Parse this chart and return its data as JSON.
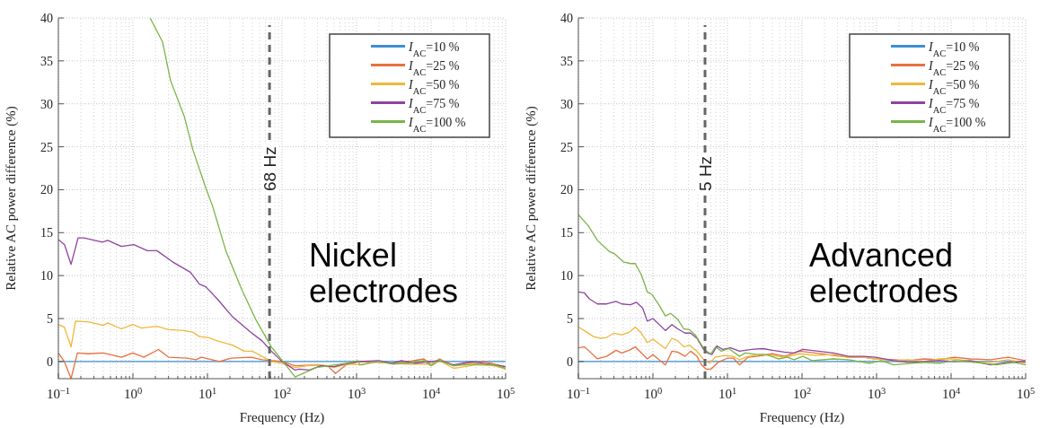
{
  "chart_data": [
    {
      "type": "line",
      "xlabel": "Frequency (Hz)",
      "ylabel": "Relative AC power difference (%)",
      "log": "x",
      "xlim": [
        0.1,
        100000
      ],
      "xticks": [
        {
          "value": 0.1,
          "label": "10$^{−1}$"
        },
        {
          "value": 1,
          "label": "10$^{0}$"
        },
        {
          "value": 10,
          "label": "10$^{1}$"
        },
        {
          "value": 100,
          "label": "10$^{2}$"
        },
        {
          "value": 1000,
          "label": "10$^{3}$"
        },
        {
          "value": 10000,
          "label": "10$^{4}$"
        },
        {
          "value": 100000,
          "label": "10$^{5}$"
        }
      ],
      "ylim": [
        -2,
        40
      ],
      "yticks": [
        0,
        5,
        10,
        15,
        20,
        25,
        30,
        35,
        40
      ],
      "grid": true,
      "legend": "top right",
      "ref_lines": [
        {
          "axis": "x",
          "value": 68,
          "label": "68 Hz",
          "color": "#666666",
          "line_style": "dashed"
        }
      ],
      "annotations": [
        "Nickel electrodes"
      ],
      "series": [
        {
          "name": "I$_{AC}$=10 %",
          "color": "#3e8fd0",
          "x": [
            0.1,
            100000
          ],
          "values": [
            0,
            0
          ]
        },
        {
          "name": "I$_{AC}$=25 %",
          "color": "#e8703f",
          "x": [
            0.1,
            0.12,
            0.148,
            0.18,
            0.25,
            0.4,
            0.7,
            1.0,
            1.4,
            2.2,
            3.0,
            5.3,
            7,
            8.3,
            14.5,
            21,
            38,
            54,
            100,
            150,
            290,
            410,
            520,
            720,
            1100,
            2000,
            3000,
            5000,
            8000,
            10000,
            13000,
            20000,
            30000,
            50000,
            100000
          ],
          "values": [
            1.0,
            0,
            -2.0,
            1.0,
            0.9,
            1.0,
            0.5,
            1.0,
            0.5,
            1.4,
            0.5,
            0.4,
            0.2,
            0.5,
            0,
            0.4,
            0.5,
            0.2,
            0,
            -0.5,
            -0.4,
            -0.5,
            -1.4,
            -0.4,
            0,
            -0.1,
            -0.2,
            0,
            0.3,
            -0.3,
            0.3,
            -0.5,
            -0.2,
            0,
            -0.6
          ]
        },
        {
          "name": "I$_{AC}$=50 %",
          "color": "#f0b83a",
          "x": [
            0.1,
            0.12,
            0.148,
            0.17,
            0.26,
            0.4,
            0.46,
            0.7,
            1.0,
            1.3,
            2.1,
            3.0,
            4.9,
            6.4,
            7.8,
            10.2,
            13.5,
            21.7,
            31,
            40,
            54,
            72,
            100,
            150,
            220,
            330,
            500,
            750,
            1200,
            1700,
            3000,
            5000,
            10000,
            13000,
            20000,
            40000,
            70000,
            100000
          ],
          "values": [
            4.3,
            4.0,
            1.7,
            4.7,
            4.6,
            4.2,
            4.5,
            3.8,
            4.3,
            3.9,
            4.1,
            3.7,
            3.6,
            3.4,
            2.9,
            2.8,
            2.4,
            1.9,
            1.2,
            1.2,
            0.6,
            0,
            -0.2,
            -0.7,
            -0.5,
            -0.4,
            -0.7,
            -0.3,
            -0.4,
            0,
            -0.2,
            -0.3,
            -0.3,
            0.1,
            -0.8,
            -0.4,
            -0.5,
            -0.9
          ]
        },
        {
          "name": "I$_{AC}$=75 %",
          "color": "#8e44a0",
          "x": [
            0.1,
            0.121,
            0.148,
            0.184,
            0.22,
            0.39,
            0.46,
            0.7,
            1.03,
            1.56,
            2.1,
            3.4,
            5.9,
            7.8,
            9.5,
            13.5,
            21.7,
            38,
            54,
            72,
            100,
            150,
            170,
            234,
            330,
            500,
            700,
            1100,
            2000,
            3000,
            4000,
            6000,
            10000,
            13000,
            20000,
            35000,
            50000,
            100000
          ],
          "values": [
            14.2,
            13.6,
            11.3,
            14.4,
            14.4,
            13.9,
            14.1,
            13.4,
            13.6,
            12.9,
            12.9,
            11.6,
            10.4,
            9.0,
            8.7,
            7.3,
            5.2,
            3.4,
            2.4,
            1.2,
            0,
            -1.0,
            -0.9,
            -1.0,
            -0.5,
            -0.6,
            -0.3,
            0,
            0.1,
            -0.2,
            0.1,
            -0.2,
            0,
            0.1,
            -0.4,
            0,
            -0.2,
            -0.6
          ]
        },
        {
          "name": "I$_{AC}$=100 %",
          "color": "#79b546",
          "x": [
            1.7,
            2.5,
            3.2,
            4.9,
            6.4,
            9.5,
            11.7,
            17.8,
            28.8,
            45,
            72,
            103,
            150,
            288,
            725,
            1050,
            1100,
            2000,
            3000,
            5000,
            8000,
            10000,
            13000,
            20000,
            40000,
            70000,
            100000
          ],
          "values": [
            40,
            37.2,
            32.7,
            28.5,
            24.6,
            20.2,
            18.1,
            12.8,
            8.4,
            4.8,
            1.7,
            0,
            -1.8,
            -0.7,
            -0.2,
            0.1,
            -0.4,
            0,
            -0.3,
            -0.2,
            0.1,
            -0.5,
            0.1,
            -0.5,
            -0.3,
            -0.4,
            -0.8
          ]
        }
      ]
    },
    {
      "type": "line",
      "xlabel": "Frequency (Hz)",
      "ylabel": "Relative AC power difference (%)",
      "log": "x",
      "xlim": [
        0.1,
        100000
      ],
      "xticks": [
        {
          "value": 0.1,
          "label": "10$^{−1}$"
        },
        {
          "value": 1,
          "label": "10$^{0}$"
        },
        {
          "value": 10,
          "label": "10$^{1}$"
        },
        {
          "value": 100,
          "label": "10$^{2}$"
        },
        {
          "value": 1000,
          "label": "10$^{3}$"
        },
        {
          "value": 10000,
          "label": "10$^{4}$"
        },
        {
          "value": 100000,
          "label": "10$^{5}$"
        }
      ],
      "ylim": [
        -2,
        40
      ],
      "yticks": [
        0,
        5,
        10,
        15,
        20,
        25,
        30,
        35,
        40
      ],
      "grid": true,
      "legend": "top right",
      "ref_lines": [
        {
          "axis": "x",
          "value": 5,
          "label": "5 Hz",
          "color": "#666666",
          "line_style": "dashed"
        }
      ],
      "annotations": [
        "Advanced electrodes"
      ],
      "series": [
        {
          "name": "I$_{AC}$=10 %",
          "color": "#3e8fd0",
          "x": [
            0.1,
            100000
          ],
          "values": [
            0,
            0
          ]
        },
        {
          "name": "I$_{AC}$=25 %",
          "color": "#e8703f",
          "x": [
            0.1,
            0.12,
            0.14,
            0.18,
            0.24,
            0.32,
            0.38,
            0.48,
            0.58,
            0.7,
            0.84,
            1.0,
            1.47,
            1.8,
            2.15,
            2.7,
            3.2,
            3.9,
            4.5,
            5.2,
            6.0,
            7.5,
            10,
            12,
            14.5,
            19,
            25,
            40,
            58,
            93,
            150,
            262,
            420,
            670,
            960,
            1700,
            2700,
            4300,
            6900,
            11000,
            18000,
            34000,
            58000,
            100000
          ],
          "values": [
            1.6,
            1.7,
            1.2,
            0.3,
            0.6,
            1.3,
            1.0,
            1.3,
            1.7,
            1.0,
            0.3,
            0.8,
            -0.4,
            1.2,
            1.1,
            0.6,
            1.2,
            0.6,
            -0.4,
            -0.9,
            -0.9,
            -0.1,
            0.4,
            0.4,
            -0.4,
            0.5,
            0.6,
            0.9,
            0.6,
            1.2,
            1.0,
            0.7,
            0.5,
            0.5,
            0.3,
            0.2,
            0.1,
            0.3,
            0.2,
            0.5,
            0.3,
            0.2,
            0.5,
            0.1
          ]
        },
        {
          "name": "I$_{AC}$=50 %",
          "color": "#f0b83a",
          "x": [
            0.1,
            0.12,
            0.16,
            0.2,
            0.24,
            0.3,
            0.38,
            0.48,
            0.58,
            0.7,
            0.84,
            1.0,
            1.47,
            1.8,
            2.15,
            2.6,
            3.1,
            3.9,
            4.7,
            5.7,
            6.9,
            9.1,
            12,
            14.5,
            19,
            28,
            40,
            58,
            93,
            150,
            262,
            420,
            670,
            960,
            1700,
            2700,
            4300,
            6900,
            11000,
            18000,
            34000,
            58000,
            100000
          ],
          "values": [
            4.0,
            3.6,
            2.9,
            2.7,
            2.8,
            3.3,
            3.1,
            3.4,
            4.0,
            3.3,
            2.2,
            2.6,
            1.5,
            2.7,
            2.4,
            1.7,
            1.9,
            1.2,
            0.3,
            -0.2,
            0.5,
            0.7,
            0.6,
            0.2,
            0.6,
            0.8,
            0.7,
            0.5,
            0.9,
            0.7,
            0.8,
            0.5,
            0.5,
            0.3,
            0.1,
            0.2,
            0,
            0.3,
            0.3,
            0,
            -0.1,
            0.2,
            -0.2
          ]
        },
        {
          "name": "I$_{AC}$=75 %",
          "color": "#8e44a0",
          "x": [
            0.1,
            0.12,
            0.14,
            0.18,
            0.24,
            0.32,
            0.38,
            0.5,
            0.6,
            0.73,
            0.84,
            1.0,
            1.47,
            1.8,
            2.15,
            2.7,
            3.2,
            3.9,
            4.7,
            5.4,
            6.2,
            7.2,
            8.7,
            11,
            14.5,
            21,
            30,
            40,
            58,
            78,
            103,
            165,
            262,
            420,
            670,
            960,
            1700,
            2700,
            4300,
            6900,
            11000,
            18000,
            34000,
            58000,
            100000
          ],
          "values": [
            8.1,
            8.0,
            7.3,
            6.7,
            6.7,
            7.0,
            6.7,
            6.6,
            6.9,
            6.2,
            4.7,
            5.0,
            3.6,
            4.3,
            3.8,
            3.3,
            3.3,
            2.7,
            1.5,
            1.0,
            0.8,
            1.8,
            1.4,
            1.6,
            1.2,
            1.4,
            1.5,
            1.3,
            1.1,
            1.0,
            1.4,
            1.2,
            1.0,
            0.6,
            0.6,
            0.5,
            0.1,
            -0.1,
            0,
            0.1,
            0,
            0.1,
            -0.4,
            -0.1,
            0
          ]
        },
        {
          "name": "I$_{AC}$=100 %",
          "color": "#79b546",
          "x": [
            0.1,
            0.136,
            0.18,
            0.26,
            0.31,
            0.4,
            0.5,
            0.58,
            0.7,
            0.84,
            0.97,
            1.2,
            1.47,
            1.73,
            2.15,
            2.59,
            3.1,
            3.7,
            4.5,
            5.2,
            6.0,
            6.9,
            8.3,
            10.4,
            14.5,
            17.3,
            25,
            33,
            48,
            64,
            78,
            103,
            136,
            262,
            420,
            800,
            1150,
            1700,
            4300,
            6900,
            11000,
            28000,
            40000,
            70000,
            100000
          ],
          "values": [
            17.1,
            15.8,
            14.1,
            12.8,
            12.5,
            11.6,
            11.4,
            11.4,
            10.1,
            8.1,
            7.8,
            6.6,
            5.3,
            5.6,
            4.9,
            3.8,
            3.7,
            3.1,
            1.9,
            1.2,
            0.9,
            1.7,
            1.2,
            1.5,
            0.6,
            1.0,
            0.8,
            0.8,
            0.3,
            0.5,
            0.2,
            0.6,
            0.1,
            0.3,
            0.2,
            -0.2,
            0.1,
            -0.4,
            -0.1,
            -0.2,
            0.1,
            -0.2,
            -0.4,
            -0.1,
            -0.4
          ]
        }
      ]
    }
  ]
}
